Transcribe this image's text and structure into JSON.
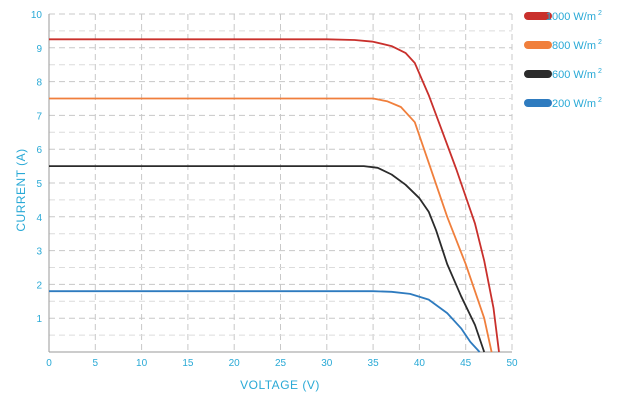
{
  "chart_data": {
    "type": "line",
    "xlabel": "VOLTAGE (V)",
    "ylabel": "CURRENT (A)",
    "xlim": [
      0,
      50
    ],
    "ylim": [
      0,
      10
    ],
    "x_ticks": [
      "0",
      "5",
      "10",
      "15",
      "20",
      "25",
      "30",
      "35",
      "40",
      "45",
      "50"
    ],
    "y_ticks": [
      "1",
      "2",
      "3",
      "4",
      "5",
      "6",
      "7",
      "8",
      "9",
      "10"
    ],
    "grid": true,
    "legend_position": "right",
    "legend_unit": "W/m",
    "legend_superscript": "2",
    "series": [
      {
        "name": "1000",
        "color": "#c9302c",
        "points": [
          [
            0,
            9.25
          ],
          [
            30,
            9.25
          ],
          [
            33,
            9.23
          ],
          [
            35,
            9.18
          ],
          [
            37,
            9.05
          ],
          [
            38.5,
            8.85
          ],
          [
            39.5,
            8.55
          ],
          [
            41,
            7.6
          ],
          [
            42.5,
            6.5
          ],
          [
            44,
            5.4
          ],
          [
            46,
            3.8
          ],
          [
            47,
            2.7
          ],
          [
            48,
            1.3
          ],
          [
            48.6,
            0
          ]
        ]
      },
      {
        "name": "800",
        "color": "#f07f3c",
        "points": [
          [
            0,
            7.5
          ],
          [
            35,
            7.5
          ],
          [
            36.5,
            7.42
          ],
          [
            38,
            7.25
          ],
          [
            39.5,
            6.8
          ],
          [
            41,
            5.6
          ],
          [
            43,
            4.0
          ],
          [
            45,
            2.6
          ],
          [
            47,
            1.0
          ],
          [
            47.8,
            0
          ]
        ]
      },
      {
        "name": "600",
        "color": "#2b2b2b",
        "points": [
          [
            0,
            5.5
          ],
          [
            34,
            5.5
          ],
          [
            35.5,
            5.45
          ],
          [
            37,
            5.25
          ],
          [
            38.5,
            4.95
          ],
          [
            40,
            4.55
          ],
          [
            41,
            4.15
          ],
          [
            41.8,
            3.6
          ],
          [
            43,
            2.6
          ],
          [
            44.5,
            1.65
          ],
          [
            46,
            0.8
          ],
          [
            47,
            0
          ]
        ]
      },
      {
        "name": "200",
        "color": "#2e7bbf",
        "points": [
          [
            0,
            1.8
          ],
          [
            35,
            1.8
          ],
          [
            37,
            1.78
          ],
          [
            39,
            1.72
          ],
          [
            41,
            1.55
          ],
          [
            43,
            1.15
          ],
          [
            44.5,
            0.7
          ],
          [
            45.5,
            0.3
          ],
          [
            46.5,
            0
          ]
        ]
      }
    ]
  }
}
